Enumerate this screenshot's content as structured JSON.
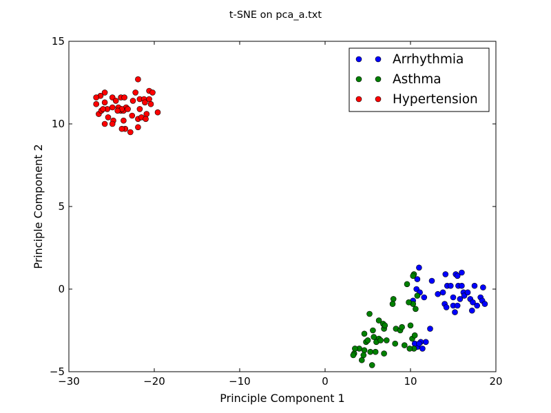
{
  "chart_data": {
    "type": "scatter",
    "title": "t-SNE on pca_a.txt",
    "xlabel": "Principle Component 1",
    "ylabel": "Principle Component 2",
    "xlim": [
      -30,
      20
    ],
    "ylim": [
      -5,
      15
    ],
    "xticks": [
      -30,
      -20,
      -10,
      0,
      10,
      20
    ],
    "xtick_labels": [
      "−30",
      "−20",
      "−10",
      "0",
      "10",
      "20"
    ],
    "yticks": [
      -5,
      0,
      5,
      10,
      15
    ],
    "ytick_labels": [
      "−5",
      "0",
      "5",
      "10",
      "15"
    ],
    "grid": false,
    "legend_position": "top-right",
    "series": [
      {
        "name": "Arrhythmia",
        "color": "#0000ff",
        "points": [
          [
            11.0,
            1.3
          ],
          [
            10.8,
            0.6
          ],
          [
            10.7,
            0.0
          ],
          [
            11.1,
            -0.2
          ],
          [
            11.6,
            -0.5
          ],
          [
            10.3,
            -0.7
          ],
          [
            12.5,
            0.5
          ],
          [
            13.2,
            -0.3
          ],
          [
            14.1,
            0.9
          ],
          [
            13.8,
            -0.2
          ],
          [
            14.3,
            0.2
          ],
          [
            14.0,
            -0.9
          ],
          [
            14.7,
            0.2
          ],
          [
            15.0,
            -0.5
          ],
          [
            15.3,
            0.9
          ],
          [
            15.6,
            0.2
          ],
          [
            15.5,
            0.8
          ],
          [
            16.0,
            1.0
          ],
          [
            16.0,
            0.2
          ],
          [
            16.2,
            -0.2
          ],
          [
            15.8,
            -0.6
          ],
          [
            16.3,
            -0.4
          ],
          [
            16.7,
            -0.2
          ],
          [
            17.0,
            -0.6
          ],
          [
            17.5,
            0.2
          ],
          [
            17.3,
            -0.8
          ],
          [
            17.8,
            -1.0
          ],
          [
            18.2,
            -0.5
          ],
          [
            18.4,
            -0.7
          ],
          [
            18.5,
            0.1
          ],
          [
            18.7,
            -0.9
          ],
          [
            14.2,
            -1.1
          ],
          [
            15.0,
            -1.0
          ],
          [
            15.5,
            -1.0
          ],
          [
            15.2,
            -1.4
          ],
          [
            17.2,
            -1.3
          ],
          [
            12.3,
            -2.4
          ],
          [
            11.2,
            -3.2
          ],
          [
            10.8,
            -3.5
          ],
          [
            11.4,
            -3.6
          ],
          [
            11.8,
            -3.2
          ],
          [
            10.5,
            -3.3
          ],
          [
            11.0,
            -3.3
          ]
        ]
      },
      {
        "name": "Asthma",
        "color": "#008000",
        "points": [
          [
            10.4,
            0.9
          ],
          [
            10.3,
            0.8
          ],
          [
            9.6,
            0.3
          ],
          [
            10.8,
            -0.4
          ],
          [
            10.3,
            -0.9
          ],
          [
            9.8,
            -0.8
          ],
          [
            8.0,
            -0.6
          ],
          [
            7.9,
            -0.9
          ],
          [
            10.6,
            -1.2
          ],
          [
            5.2,
            -1.5
          ],
          [
            6.3,
            -1.9
          ],
          [
            6.8,
            -2.1
          ],
          [
            6.9,
            -2.4
          ],
          [
            7.0,
            -2.2
          ],
          [
            8.3,
            -2.4
          ],
          [
            8.8,
            -2.5
          ],
          [
            9.0,
            -2.3
          ],
          [
            10.0,
            -2.2
          ],
          [
            5.6,
            -2.5
          ],
          [
            4.6,
            -2.7
          ],
          [
            5.7,
            -2.9
          ],
          [
            6.3,
            -3.0
          ],
          [
            7.2,
            -3.1
          ],
          [
            6.0,
            -3.2
          ],
          [
            6.5,
            -3.1
          ],
          [
            4.8,
            -3.2
          ],
          [
            5.0,
            -3.1
          ],
          [
            8.2,
            -3.3
          ],
          [
            9.3,
            -3.4
          ],
          [
            10.4,
            -3.6
          ],
          [
            10.2,
            -3.0
          ],
          [
            10.5,
            -2.8
          ],
          [
            9.9,
            -3.6
          ],
          [
            4.0,
            -3.6
          ],
          [
            4.6,
            -3.7
          ],
          [
            5.3,
            -3.8
          ],
          [
            5.9,
            -3.8
          ],
          [
            6.9,
            -3.9
          ],
          [
            4.5,
            -4.0
          ],
          [
            3.4,
            -3.9
          ],
          [
            3.5,
            -3.6
          ],
          [
            4.3,
            -4.3
          ],
          [
            5.5,
            -4.6
          ],
          [
            3.3,
            -4.0
          ]
        ]
      },
      {
        "name": "Hypertension",
        "color": "#ff0000",
        "points": [
          [
            -21.9,
            12.7
          ],
          [
            -26.3,
            11.7
          ],
          [
            -26.8,
            11.6
          ],
          [
            -25.8,
            11.9
          ],
          [
            -24.9,
            11.6
          ],
          [
            -24.5,
            11.4
          ],
          [
            -23.9,
            11.6
          ],
          [
            -23.5,
            11.6
          ],
          [
            -24.2,
            11.0
          ],
          [
            -23.3,
            11.0
          ],
          [
            -22.2,
            11.9
          ],
          [
            -21.7,
            11.5
          ],
          [
            -21.2,
            11.5
          ],
          [
            -20.6,
            12.0
          ],
          [
            -20.2,
            11.9
          ],
          [
            -20.6,
            11.5
          ],
          [
            -20.4,
            11.2
          ],
          [
            -21.1,
            11.3
          ],
          [
            -22.5,
            11.4
          ],
          [
            -26.8,
            11.2
          ],
          [
            -25.5,
            10.9
          ],
          [
            -24.9,
            11.0
          ],
          [
            -25.8,
            11.3
          ],
          [
            -23.9,
            10.8
          ],
          [
            -23.6,
            10.8
          ],
          [
            -23.1,
            10.9
          ],
          [
            -21.7,
            10.9
          ],
          [
            -22.6,
            10.5
          ],
          [
            -23.8,
            10.9
          ],
          [
            -24.3,
            10.8
          ],
          [
            -26.5,
            10.6
          ],
          [
            -26.2,
            10.8
          ],
          [
            -26.0,
            10.9
          ],
          [
            -21.9,
            10.3
          ],
          [
            -21.5,
            10.4
          ],
          [
            -20.9,
            10.6
          ],
          [
            -21.0,
            10.3
          ],
          [
            -25.4,
            10.4
          ],
          [
            -24.8,
            10.2
          ],
          [
            -24.9,
            10.0
          ],
          [
            -25.8,
            10.0
          ],
          [
            -23.6,
            10.2
          ],
          [
            -23.4,
            9.7
          ],
          [
            -23.8,
            9.7
          ],
          [
            -22.8,
            9.5
          ],
          [
            -21.9,
            9.8
          ],
          [
            -19.6,
            10.7
          ]
        ]
      }
    ]
  }
}
